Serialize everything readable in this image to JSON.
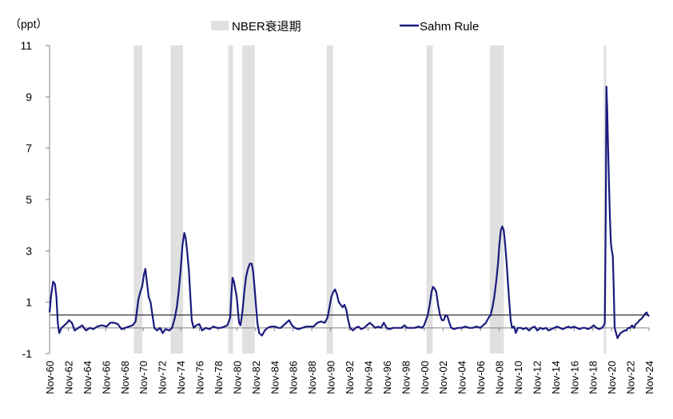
{
  "chart_data": {
    "type": "line",
    "unit_label": "（ppt）",
    "ylim": [
      -1,
      11
    ],
    "y_ticks": [
      -1,
      1,
      3,
      5,
      7,
      9,
      11
    ],
    "xlim": [
      1960.917,
      2024.917
    ],
    "x_tick_labels": [
      "Nov-60",
      "Nov-62",
      "Nov-64",
      "Nov-66",
      "Nov-68",
      "Nov-70",
      "Nov-72",
      "Nov-74",
      "Nov-76",
      "Nov-78",
      "Nov-80",
      "Nov-82",
      "Nov-84",
      "Nov-86",
      "Nov-88",
      "Nov-90",
      "Nov-92",
      "Nov-94",
      "Nov-96",
      "Nov-98",
      "Nov-00",
      "Nov-02",
      "Nov-04",
      "Nov-06",
      "Nov-08",
      "Nov-10",
      "Nov-12",
      "Nov-14",
      "Nov-16",
      "Nov-18",
      "Nov-20",
      "Nov-22",
      "Nov-24"
    ],
    "x_tick_years": [
      1960.917,
      1962.917,
      1964.917,
      1966.917,
      1968.917,
      1970.917,
      1972.917,
      1974.917,
      1976.917,
      1978.917,
      1980.917,
      1982.917,
      1984.917,
      1986.917,
      1988.917,
      1990.917,
      1992.917,
      1994.917,
      1996.917,
      1998.917,
      2000.917,
      2002.917,
      2004.917,
      2006.917,
      2008.917,
      2010.917,
      2012.917,
      2014.917,
      2016.917,
      2018.917,
      2020.917,
      2022.917,
      2024.917
    ],
    "threshold": 0.5,
    "legend": [
      {
        "label": "NBER衰退期",
        "color": "#e0e0e0",
        "kind": "box"
      },
      {
        "label": "Sahm Rule",
        "color": "#1a1a7e",
        "kind": "line"
      }
    ],
    "recessions": [
      [
        1969.917,
        1970.833
      ],
      [
        1973.833,
        1975.167
      ],
      [
        1980.0,
        1980.5
      ],
      [
        1981.5,
        1982.833
      ],
      [
        1990.5,
        1991.167
      ],
      [
        2001.167,
        2001.833
      ],
      [
        2007.917,
        2009.417
      ],
      [
        2020.083,
        2020.333
      ]
    ],
    "series": [
      {
        "color": "#1a1a7e",
        "points": [
          [
            1960.917,
            0.6
          ],
          [
            1961.1,
            1.3
          ],
          [
            1961.3,
            1.8
          ],
          [
            1961.5,
            1.7
          ],
          [
            1961.65,
            1.2
          ],
          [
            1961.8,
            0.2
          ],
          [
            1961.95,
            -0.2
          ],
          [
            1962.2,
            0.0
          ],
          [
            1962.5,
            0.1
          ],
          [
            1962.8,
            0.2
          ],
          [
            1963.0,
            0.3
          ],
          [
            1963.3,
            0.2
          ],
          [
            1963.6,
            -0.1
          ],
          [
            1964.0,
            0.0
          ],
          [
            1964.4,
            0.1
          ],
          [
            1964.8,
            -0.1
          ],
          [
            1965.2,
            0.0
          ],
          [
            1965.6,
            -0.05
          ],
          [
            1966.0,
            0.05
          ],
          [
            1966.5,
            0.1
          ],
          [
            1967.0,
            0.05
          ],
          [
            1967.4,
            0.2
          ],
          [
            1967.8,
            0.2
          ],
          [
            1968.2,
            0.15
          ],
          [
            1968.6,
            -0.05
          ],
          [
            1969.0,
            0.0
          ],
          [
            1969.4,
            0.05
          ],
          [
            1969.8,
            0.1
          ],
          [
            1970.1,
            0.25
          ],
          [
            1970.4,
            1.1
          ],
          [
            1970.6,
            1.4
          ],
          [
            1970.8,
            1.6
          ],
          [
            1971.0,
            2.1
          ],
          [
            1971.15,
            2.3
          ],
          [
            1971.3,
            1.8
          ],
          [
            1971.5,
            1.2
          ],
          [
            1971.7,
            1.0
          ],
          [
            1971.9,
            0.5
          ],
          [
            1972.1,
            0.0
          ],
          [
            1972.4,
            -0.1
          ],
          [
            1972.7,
            0.0
          ],
          [
            1973.0,
            -0.2
          ],
          [
            1973.3,
            -0.05
          ],
          [
            1973.7,
            -0.1
          ],
          [
            1974.0,
            0.0
          ],
          [
            1974.3,
            0.4
          ],
          [
            1974.5,
            0.8
          ],
          [
            1974.7,
            1.4
          ],
          [
            1974.9,
            2.2
          ],
          [
            1975.1,
            3.2
          ],
          [
            1975.3,
            3.7
          ],
          [
            1975.45,
            3.5
          ],
          [
            1975.6,
            3.0
          ],
          [
            1975.8,
            2.2
          ],
          [
            1975.95,
            1.2
          ],
          [
            1976.1,
            0.3
          ],
          [
            1976.3,
            0.0
          ],
          [
            1976.6,
            0.1
          ],
          [
            1976.9,
            0.15
          ],
          [
            1977.2,
            -0.1
          ],
          [
            1977.6,
            0.0
          ],
          [
            1978.0,
            -0.05
          ],
          [
            1978.4,
            0.05
          ],
          [
            1978.8,
            0.0
          ],
          [
            1979.2,
            0.0
          ],
          [
            1979.6,
            0.05
          ],
          [
            1979.9,
            0.1
          ],
          [
            1980.2,
            0.4
          ],
          [
            1980.35,
            1.4
          ],
          [
            1980.45,
            1.95
          ],
          [
            1980.6,
            1.8
          ],
          [
            1980.75,
            1.5
          ],
          [
            1980.9,
            1.2
          ],
          [
            1981.0,
            0.8
          ],
          [
            1981.15,
            0.2
          ],
          [
            1981.3,
            0.1
          ],
          [
            1981.5,
            0.6
          ],
          [
            1981.7,
            1.4
          ],
          [
            1981.9,
            2.0
          ],
          [
            1982.1,
            2.3
          ],
          [
            1982.3,
            2.5
          ],
          [
            1982.5,
            2.5
          ],
          [
            1982.65,
            2.2
          ],
          [
            1982.8,
            1.6
          ],
          [
            1982.95,
            0.9
          ],
          [
            1983.1,
            0.2
          ],
          [
            1983.3,
            -0.2
          ],
          [
            1983.6,
            -0.3
          ],
          [
            1983.9,
            -0.1
          ],
          [
            1984.2,
            0.0
          ],
          [
            1984.6,
            0.05
          ],
          [
            1985.0,
            0.05
          ],
          [
            1985.3,
            0.0
          ],
          [
            1985.6,
            0.0
          ],
          [
            1985.9,
            0.1
          ],
          [
            1986.2,
            0.2
          ],
          [
            1986.5,
            0.3
          ],
          [
            1986.8,
            0.1
          ],
          [
            1987.1,
            0.0
          ],
          [
            1987.5,
            -0.05
          ],
          [
            1987.9,
            0.0
          ],
          [
            1988.3,
            0.05
          ],
          [
            1988.7,
            0.05
          ],
          [
            1989.1,
            0.05
          ],
          [
            1989.5,
            0.2
          ],
          [
            1989.9,
            0.25
          ],
          [
            1990.3,
            0.2
          ],
          [
            1990.6,
            0.4
          ],
          [
            1990.8,
            0.8
          ],
          [
            1991.0,
            1.2
          ],
          [
            1991.2,
            1.4
          ],
          [
            1991.4,
            1.5
          ],
          [
            1991.6,
            1.3
          ],
          [
            1991.8,
            1.0
          ],
          [
            1992.0,
            0.9
          ],
          [
            1992.2,
            0.8
          ],
          [
            1992.4,
            0.9
          ],
          [
            1992.6,
            0.7
          ],
          [
            1992.8,
            0.3
          ],
          [
            1993.0,
            0.0
          ],
          [
            1993.3,
            -0.1
          ],
          [
            1993.6,
            0.0
          ],
          [
            1993.9,
            0.05
          ],
          [
            1994.2,
            -0.05
          ],
          [
            1994.5,
            0.0
          ],
          [
            1994.8,
            0.1
          ],
          [
            1995.1,
            0.2
          ],
          [
            1995.4,
            0.1
          ],
          [
            1995.7,
            0.0
          ],
          [
            1996.0,
            0.05
          ],
          [
            1996.3,
            0.0
          ],
          [
            1996.6,
            0.2
          ],
          [
            1996.9,
            0.0
          ],
          [
            1997.2,
            -0.05
          ],
          [
            1997.6,
            0.0
          ],
          [
            1997.9,
            0.0
          ],
          [
            1998.2,
            0.0
          ],
          [
            1998.5,
            0.0
          ],
          [
            1998.8,
            0.1
          ],
          [
            1999.1,
            0.0
          ],
          [
            1999.5,
            0.0
          ],
          [
            1999.9,
            0.0
          ],
          [
            2000.3,
            0.05
          ],
          [
            2000.7,
            0.0
          ],
          [
            2000.9,
            0.1
          ],
          [
            2001.1,
            0.3
          ],
          [
            2001.3,
            0.5
          ],
          [
            2001.5,
            0.9
          ],
          [
            2001.7,
            1.4
          ],
          [
            2001.85,
            1.6
          ],
          [
            2002.0,
            1.55
          ],
          [
            2002.2,
            1.4
          ],
          [
            2002.4,
            0.9
          ],
          [
            2002.6,
            0.5
          ],
          [
            2002.8,
            0.3
          ],
          [
            2003.0,
            0.3
          ],
          [
            2003.2,
            0.5
          ],
          [
            2003.4,
            0.45
          ],
          [
            2003.6,
            0.2
          ],
          [
            2003.8,
            0.0
          ],
          [
            2004.1,
            -0.05
          ],
          [
            2004.5,
            0.0
          ],
          [
            2004.9,
            0.0
          ],
          [
            2005.3,
            0.05
          ],
          [
            2005.7,
            0.0
          ],
          [
            2006.1,
            0.0
          ],
          [
            2006.5,
            0.05
          ],
          [
            2006.9,
            0.0
          ],
          [
            2007.2,
            0.1
          ],
          [
            2007.5,
            0.2
          ],
          [
            2007.8,
            0.4
          ],
          [
            2008.0,
            0.5
          ],
          [
            2008.2,
            0.8
          ],
          [
            2008.4,
            1.2
          ],
          [
            2008.6,
            1.8
          ],
          [
            2008.8,
            2.5
          ],
          [
            2008.95,
            3.3
          ],
          [
            2009.1,
            3.8
          ],
          [
            2009.25,
            3.95
          ],
          [
            2009.4,
            3.8
          ],
          [
            2009.55,
            3.3
          ],
          [
            2009.7,
            2.6
          ],
          [
            2009.85,
            1.8
          ],
          [
            2010.0,
            1.0
          ],
          [
            2010.15,
            0.3
          ],
          [
            2010.3,
            0.0
          ],
          [
            2010.5,
            0.05
          ],
          [
            2010.7,
            -0.2
          ],
          [
            2010.9,
            0.0
          ],
          [
            2011.2,
            0.0
          ],
          [
            2011.5,
            -0.05
          ],
          [
            2011.8,
            0.0
          ],
          [
            2012.1,
            -0.1
          ],
          [
            2012.4,
            0.0
          ],
          [
            2012.7,
            0.05
          ],
          [
            2013.0,
            -0.1
          ],
          [
            2013.3,
            0.0
          ],
          [
            2013.6,
            -0.05
          ],
          [
            2013.9,
            0.0
          ],
          [
            2014.2,
            -0.1
          ],
          [
            2014.5,
            -0.05
          ],
          [
            2014.8,
            0.0
          ],
          [
            2015.1,
            0.05
          ],
          [
            2015.4,
            0.0
          ],
          [
            2015.7,
            -0.05
          ],
          [
            2016.0,
            0.0
          ],
          [
            2016.3,
            0.05
          ],
          [
            2016.6,
            0.0
          ],
          [
            2016.9,
            0.05
          ],
          [
            2017.2,
            0.0
          ],
          [
            2017.5,
            -0.05
          ],
          [
            2017.8,
            0.0
          ],
          [
            2018.1,
            0.0
          ],
          [
            2018.4,
            -0.05
          ],
          [
            2018.7,
            0.0
          ],
          [
            2019.0,
            0.1
          ],
          [
            2019.3,
            0.0
          ],
          [
            2019.6,
            -0.05
          ],
          [
            2019.9,
            0.0
          ],
          [
            2020.1,
            0.1
          ],
          [
            2020.2,
            0.2
          ],
          [
            2020.3,
            4.5
          ],
          [
            2020.37,
            9.4
          ],
          [
            2020.45,
            8.5
          ],
          [
            2020.55,
            7.0
          ],
          [
            2020.65,
            5.5
          ],
          [
            2020.75,
            4.2
          ],
          [
            2020.85,
            3.3
          ],
          [
            2020.95,
            3.0
          ],
          [
            2021.05,
            2.8
          ],
          [
            2021.15,
            1.5
          ],
          [
            2021.25,
            0.0
          ],
          [
            2021.4,
            -0.2
          ],
          [
            2021.55,
            -0.4
          ],
          [
            2021.7,
            -0.3
          ],
          [
            2021.9,
            -0.2
          ],
          [
            2022.1,
            -0.15
          ],
          [
            2022.3,
            -0.1
          ],
          [
            2022.5,
            -0.1
          ],
          [
            2022.7,
            0.0
          ],
          [
            2022.9,
            0.0
          ],
          [
            2023.1,
            0.1
          ],
          [
            2023.3,
            0.0
          ],
          [
            2023.5,
            0.15
          ],
          [
            2023.7,
            0.2
          ],
          [
            2023.9,
            0.3
          ],
          [
            2024.1,
            0.35
          ],
          [
            2024.3,
            0.45
          ],
          [
            2024.5,
            0.55
          ],
          [
            2024.65,
            0.6
          ],
          [
            2024.8,
            0.5
          ],
          [
            2024.917,
            0.45
          ]
        ]
      }
    ]
  }
}
